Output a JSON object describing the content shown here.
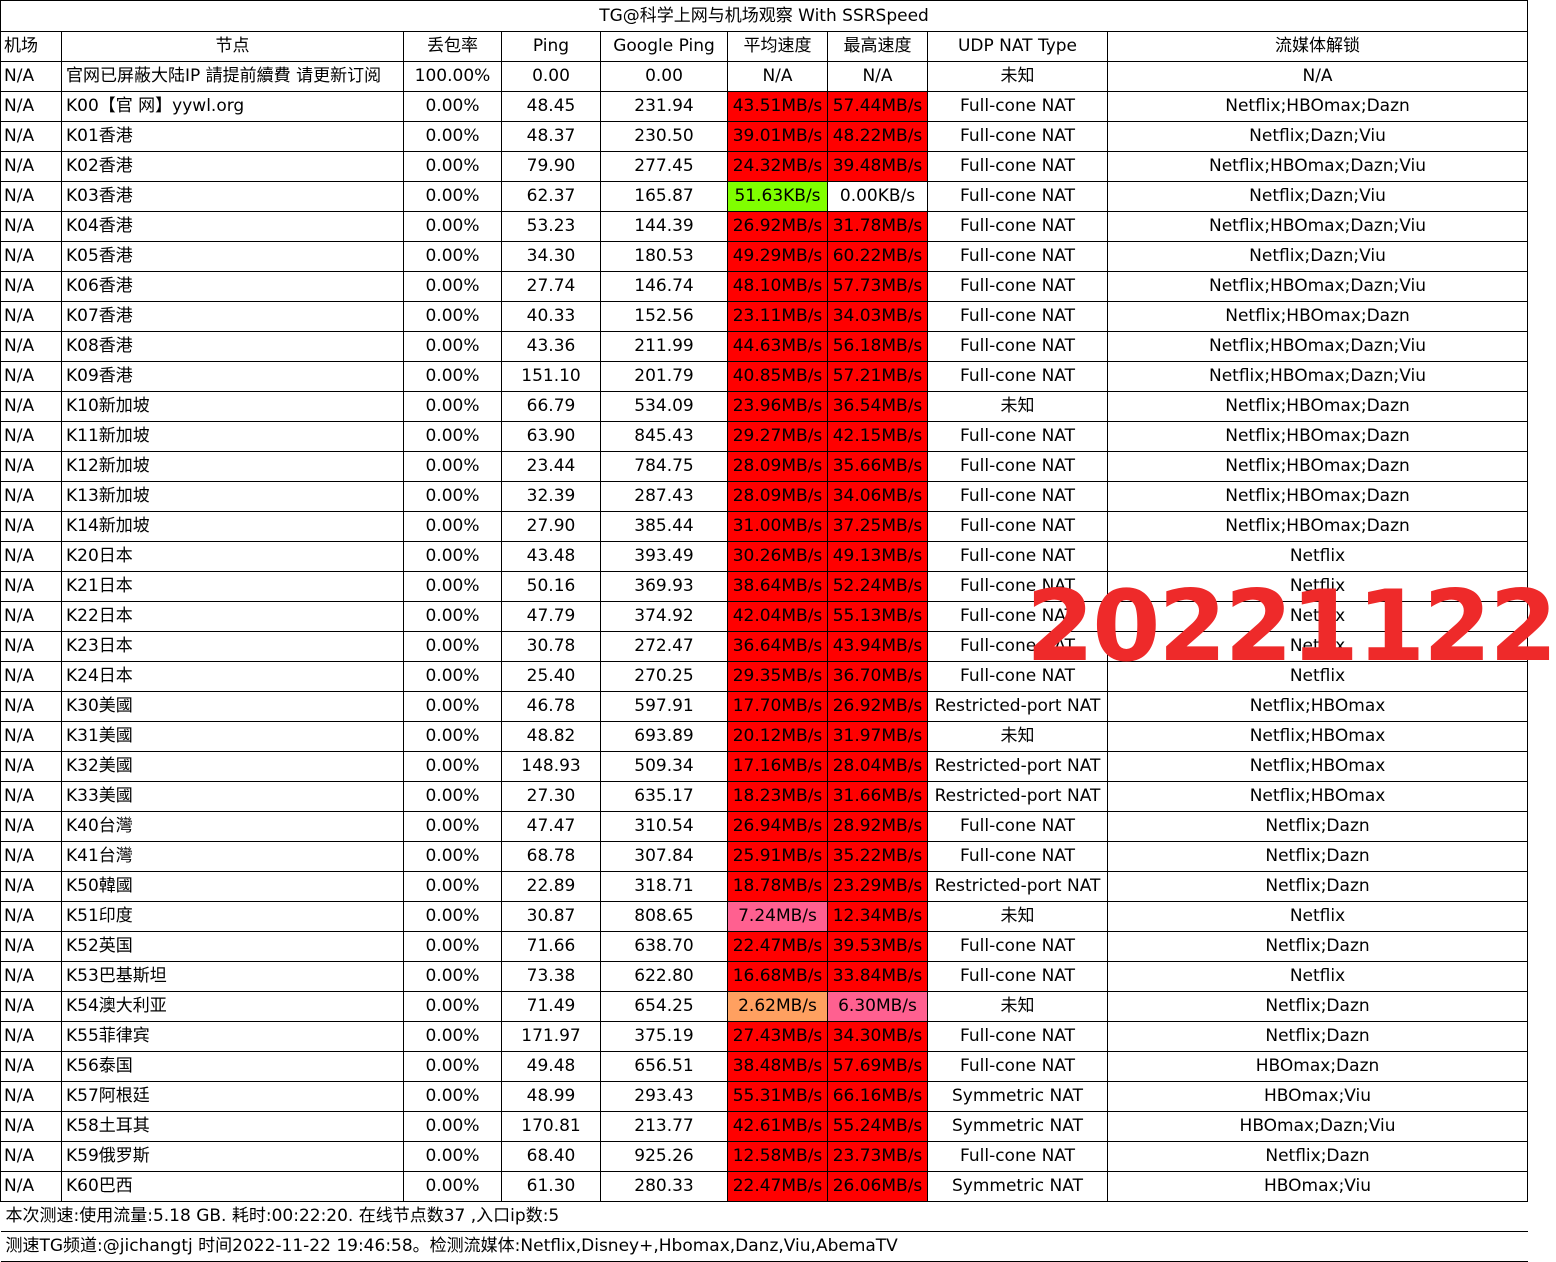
{
  "title": "TG@科学上网与机场观察 With SSRSpeed",
  "headers": [
    "机场",
    "节点",
    "丢包率",
    "Ping",
    "Google Ping",
    "平均速度",
    "最高速度",
    "UDP NAT Type",
    "流媒体解锁"
  ],
  "rows": [
    [
      "N/A",
      "官网已屏蔽大陆IP 請提前續費 请更新订阅",
      "100.00%",
      "0.00",
      "0.00",
      "N/A",
      "N/A",
      "未知",
      "N/A"
    ],
    [
      "N/A",
      "K00【官 网】yywl.org",
      "0.00%",
      "48.45",
      "231.94",
      "43.51MB/s",
      "57.44MB/s",
      "Full-cone NAT",
      "Netflix;HBOmax;Dazn"
    ],
    [
      "N/A",
      "K01香港",
      "0.00%",
      "48.37",
      "230.50",
      "39.01MB/s",
      "48.22MB/s",
      "Full-cone NAT",
      "Netflix;Dazn;Viu"
    ],
    [
      "N/A",
      "K02香港",
      "0.00%",
      "79.90",
      "277.45",
      "24.32MB/s",
      "39.48MB/s",
      "Full-cone NAT",
      "Netflix;HBOmax;Dazn;Viu"
    ],
    [
      "N/A",
      "K03香港",
      "0.00%",
      "62.37",
      "165.87",
      "51.63KB/s",
      "0.00KB/s",
      "Full-cone NAT",
      "Netflix;Dazn;Viu"
    ],
    [
      "N/A",
      "K04香港",
      "0.00%",
      "53.23",
      "144.39",
      "26.92MB/s",
      "31.78MB/s",
      "Full-cone NAT",
      "Netflix;HBOmax;Dazn;Viu"
    ],
    [
      "N/A",
      "K05香港",
      "0.00%",
      "34.30",
      "180.53",
      "49.29MB/s",
      "60.22MB/s",
      "Full-cone NAT",
      "Netflix;Dazn;Viu"
    ],
    [
      "N/A",
      "K06香港",
      "0.00%",
      "27.74",
      "146.74",
      "48.10MB/s",
      "57.73MB/s",
      "Full-cone NAT",
      "Netflix;HBOmax;Dazn;Viu"
    ],
    [
      "N/A",
      "K07香港",
      "0.00%",
      "40.33",
      "152.56",
      "23.11MB/s",
      "34.03MB/s",
      "Full-cone NAT",
      "Netflix;HBOmax;Dazn"
    ],
    [
      "N/A",
      "K08香港",
      "0.00%",
      "43.36",
      "211.99",
      "44.63MB/s",
      "56.18MB/s",
      "Full-cone NAT",
      "Netflix;HBOmax;Dazn;Viu"
    ],
    [
      "N/A",
      "K09香港",
      "0.00%",
      "151.10",
      "201.79",
      "40.85MB/s",
      "57.21MB/s",
      "Full-cone NAT",
      "Netflix;HBOmax;Dazn;Viu"
    ],
    [
      "N/A",
      "K10新加坡",
      "0.00%",
      "66.79",
      "534.09",
      "23.96MB/s",
      "36.54MB/s",
      "未知",
      "Netflix;HBOmax;Dazn"
    ],
    [
      "N/A",
      "K11新加坡",
      "0.00%",
      "63.90",
      "845.43",
      "29.27MB/s",
      "42.15MB/s",
      "Full-cone NAT",
      "Netflix;HBOmax;Dazn"
    ],
    [
      "N/A",
      "K12新加坡",
      "0.00%",
      "23.44",
      "784.75",
      "28.09MB/s",
      "35.66MB/s",
      "Full-cone NAT",
      "Netflix;HBOmax;Dazn"
    ],
    [
      "N/A",
      "K13新加坡",
      "0.00%",
      "32.39",
      "287.43",
      "28.09MB/s",
      "34.06MB/s",
      "Full-cone NAT",
      "Netflix;HBOmax;Dazn"
    ],
    [
      "N/A",
      "K14新加坡",
      "0.00%",
      "27.90",
      "385.44",
      "31.00MB/s",
      "37.25MB/s",
      "Full-cone NAT",
      "Netflix;HBOmax;Dazn"
    ],
    [
      "N/A",
      "K20日本",
      "0.00%",
      "43.48",
      "393.49",
      "30.26MB/s",
      "49.13MB/s",
      "Full-cone NAT",
      "Netflix"
    ],
    [
      "N/A",
      "K21日本",
      "0.00%",
      "50.16",
      "369.93",
      "38.64MB/s",
      "52.24MB/s",
      "Full-cone NAT",
      "Netflix"
    ],
    [
      "N/A",
      "K22日本",
      "0.00%",
      "47.79",
      "374.92",
      "42.04MB/s",
      "55.13MB/s",
      "Full-cone NAT",
      "Netflix"
    ],
    [
      "N/A",
      "K23日本",
      "0.00%",
      "30.78",
      "272.47",
      "36.64MB/s",
      "43.94MB/s",
      "Full-cone NAT",
      "Netflix"
    ],
    [
      "N/A",
      "K24日本",
      "0.00%",
      "25.40",
      "270.25",
      "29.35MB/s",
      "36.70MB/s",
      "Full-cone NAT",
      "Netflix"
    ],
    [
      "N/A",
      "K30美國",
      "0.00%",
      "46.78",
      "597.91",
      "17.70MB/s",
      "26.92MB/s",
      "Restricted-port NAT",
      "Netflix;HBOmax"
    ],
    [
      "N/A",
      "K31美國",
      "0.00%",
      "48.82",
      "693.89",
      "20.12MB/s",
      "31.97MB/s",
      "未知",
      "Netflix;HBOmax"
    ],
    [
      "N/A",
      "K32美國",
      "0.00%",
      "148.93",
      "509.34",
      "17.16MB/s",
      "28.04MB/s",
      "Restricted-port NAT",
      "Netflix;HBOmax"
    ],
    [
      "N/A",
      "K33美國",
      "0.00%",
      "27.30",
      "635.17",
      "18.23MB/s",
      "31.66MB/s",
      "Restricted-port NAT",
      "Netflix;HBOmax"
    ],
    [
      "N/A",
      "K40台灣",
      "0.00%",
      "47.47",
      "310.54",
      "26.94MB/s",
      "28.92MB/s",
      "Full-cone NAT",
      "Netflix;Dazn"
    ],
    [
      "N/A",
      "K41台灣",
      "0.00%",
      "68.78",
      "307.84",
      "25.91MB/s",
      "35.22MB/s",
      "Full-cone NAT",
      "Netflix;Dazn"
    ],
    [
      "N/A",
      "K50韓國",
      "0.00%",
      "22.89",
      "318.71",
      "18.78MB/s",
      "23.29MB/s",
      "Restricted-port NAT",
      "Netflix;Dazn"
    ],
    [
      "N/A",
      "K51印度",
      "0.00%",
      "30.87",
      "808.65",
      "7.24MB/s",
      "12.34MB/s",
      "未知",
      "Netflix"
    ],
    [
      "N/A",
      "K52英国",
      "0.00%",
      "71.66",
      "638.70",
      "22.47MB/s",
      "39.53MB/s",
      "Full-cone NAT",
      "Netflix;Dazn"
    ],
    [
      "N/A",
      "K53巴基斯坦",
      "0.00%",
      "73.38",
      "622.80",
      "16.68MB/s",
      "33.84MB/s",
      "Full-cone NAT",
      "Netflix"
    ],
    [
      "N/A",
      "K54澳大利亚",
      "0.00%",
      "71.49",
      "654.25",
      "2.62MB/s",
      "6.30MB/s",
      "未知",
      "Netflix;Dazn"
    ],
    [
      "N/A",
      "K55菲律宾",
      "0.00%",
      "171.97",
      "375.19",
      "27.43MB/s",
      "34.30MB/s",
      "Full-cone NAT",
      "Netflix;Dazn"
    ],
    [
      "N/A",
      "K56泰国",
      "0.00%",
      "49.48",
      "656.51",
      "38.48MB/s",
      "57.69MB/s",
      "Full-cone NAT",
      "HBOmax;Dazn"
    ],
    [
      "N/A",
      "K57阿根廷",
      "0.00%",
      "48.99",
      "293.43",
      "55.31MB/s",
      "66.16MB/s",
      "Symmetric NAT",
      "HBOmax;Viu"
    ],
    [
      "N/A",
      "K58土耳其",
      "0.00%",
      "170.81",
      "213.77",
      "42.61MB/s",
      "55.24MB/s",
      "Symmetric NAT",
      "HBOmax;Dazn;Viu"
    ],
    [
      "N/A",
      "K59俄罗斯",
      "0.00%",
      "68.40",
      "925.26",
      "12.58MB/s",
      "23.73MB/s",
      "Full-cone NAT",
      "Netflix;Dazn"
    ],
    [
      "N/A",
      "K60巴西",
      "0.00%",
      "61.30",
      "280.33",
      "22.47MB/s",
      "26.06MB/s",
      "Symmetric NAT",
      "HBOmax;Viu"
    ]
  ],
  "speed_colors": {
    "red": "#ff0000",
    "green": "#80ff00",
    "pink": "#ff6090",
    "orange": "#ffa060",
    "white": "#ffffff"
  },
  "avg_color_keys": [
    "white",
    "red",
    "red",
    "red",
    "green",
    "red",
    "red",
    "red",
    "red",
    "red",
    "red",
    "red",
    "red",
    "red",
    "red",
    "red",
    "red",
    "red",
    "red",
    "red",
    "red",
    "red",
    "red",
    "red",
    "red",
    "red",
    "red",
    "red",
    "pink",
    "red",
    "red",
    "orange",
    "red",
    "red",
    "red",
    "red",
    "red",
    "red"
  ],
  "max_color_keys": [
    "white",
    "red",
    "red",
    "red",
    "white",
    "red",
    "red",
    "red",
    "red",
    "red",
    "red",
    "red",
    "red",
    "red",
    "red",
    "red",
    "red",
    "red",
    "red",
    "red",
    "red",
    "red",
    "red",
    "red",
    "red",
    "red",
    "red",
    "red",
    "red",
    "red",
    "red",
    "pink",
    "red",
    "red",
    "red",
    "red",
    "red",
    "red"
  ],
  "footer_line1": "本次测速:使用流量:5.18 GB. 耗时:00:22:20. 在线节点数37 ,入口ip数:5",
  "footer_line2": "测速TG频道:@jichangtj 时间2022-11-22 19:46:58。检测流媒体:Netflix,Disney+,Hbomax,Danz,Viu,AbemaTV",
  "watermark": "20221122"
}
